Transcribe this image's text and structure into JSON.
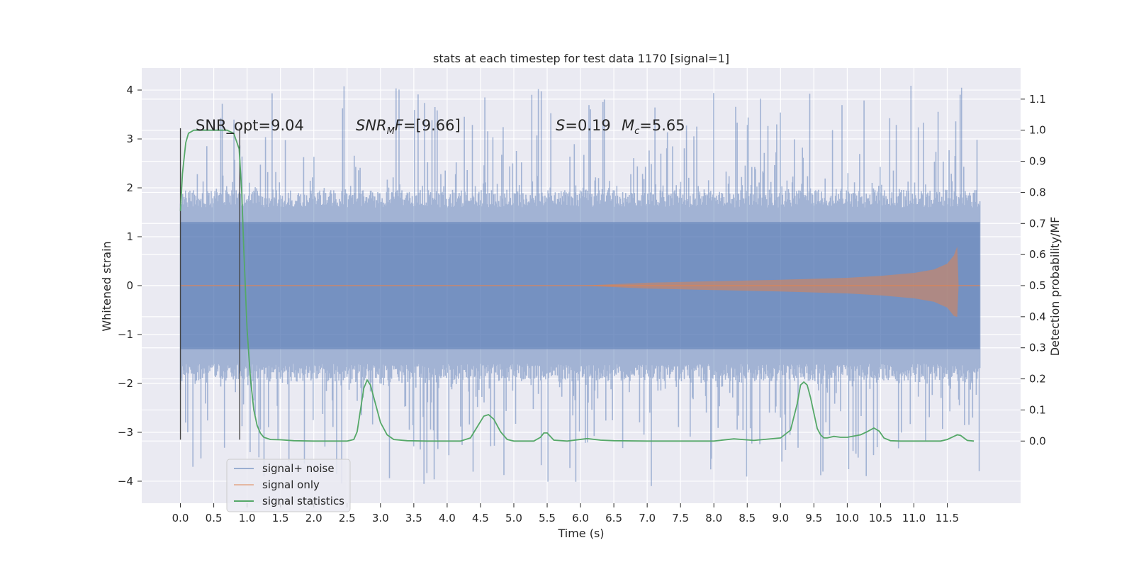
{
  "chart_data": {
    "type": "line",
    "title": "stats at each timestep for test data 1170 [signal=1]",
    "xlabel": "Time (s)",
    "ylabel": "Whitened strain",
    "y2label": "Detection probability/MF",
    "xlim": [
      -0.58,
      12.6
    ],
    "ylim": [
      -4.45,
      4.45
    ],
    "y2lim": [
      -0.2,
      1.2
    ],
    "xticks": [
      0.0,
      0.5,
      1.0,
      1.5,
      2.0,
      2.5,
      3.0,
      3.5,
      4.0,
      4.5,
      5.0,
      5.5,
      6.0,
      6.5,
      7.0,
      7.5,
      8.0,
      8.5,
      9.0,
      9.5,
      10.0,
      10.5,
      11.0,
      11.5
    ],
    "xtick_labels": [
      "0.0",
      "0.5",
      "1.0",
      "1.5",
      "2.0",
      "2.5",
      "3.0",
      "3.5",
      "4.0",
      "4.5",
      "5.0",
      "5.5",
      "6.0",
      "6.5",
      "7.0",
      "7.5",
      "8.0",
      "8.5",
      "9.0",
      "9.5",
      "10.0",
      "10.5",
      "11.0",
      "11.5"
    ],
    "yticks": [
      -4,
      -3,
      -2,
      -1,
      0,
      1,
      2,
      3,
      4
    ],
    "ytick_labels": [
      "−4",
      "−3",
      "−2",
      "−1",
      "0",
      "1",
      "2",
      "3",
      "4"
    ],
    "y2ticks": [
      0.0,
      0.1,
      0.2,
      0.3,
      0.4,
      0.5,
      0.6,
      0.7,
      0.8,
      0.9,
      1.0,
      1.1
    ],
    "y2tick_labels": [
      "0.0",
      "0.1",
      "0.2",
      "0.3",
      "0.4",
      "0.5",
      "0.6",
      "0.7",
      "0.8",
      "0.9",
      "1.0",
      "1.1"
    ],
    "grid": true,
    "legend_position": "lower-left",
    "annotations": {
      "snr_opt": "SNR_opt=9.04",
      "snr_mf_main": "SNR",
      "snr_mf_sub": "M",
      "snr_mf_rest": "F=[9.66]",
      "s_var": "S",
      "s_val": "=0.19",
      "mc_var": "M",
      "mc_sub": "c",
      "mc_val": "=5.65"
    },
    "vlines": [
      0.0,
      0.89
    ],
    "series": [
      {
        "name": "signal+ noise",
        "color": "#4c72b0",
        "kind": "noise",
        "x_range": [
          0.0,
          11.99
        ],
        "core_amplitude": 1.95,
        "spike_max": 4.1
      },
      {
        "name": "signal only",
        "color": "#dd8452",
        "kind": "chirp",
        "envelope": {
          "x": [
            6.0,
            7.0,
            8.0,
            9.0,
            10.0,
            10.5,
            11.0,
            11.3,
            11.5,
            11.6,
            11.65,
            11.67,
            11.72,
            11.99
          ],
          "y": [
            0.0,
            0.06,
            0.09,
            0.12,
            0.16,
            0.2,
            0.26,
            0.33,
            0.45,
            0.62,
            0.8,
            0.0,
            0.0,
            0.0
          ]
        }
      },
      {
        "name": "signal statistics",
        "color": "#55a868",
        "kind": "line",
        "axis": "right",
        "x": [
          0.0,
          0.03,
          0.08,
          0.12,
          0.2,
          0.3,
          0.5,
          0.7,
          0.8,
          0.88,
          0.92,
          0.95,
          1.0,
          1.05,
          1.1,
          1.15,
          1.2,
          1.25,
          1.35,
          1.5,
          1.7,
          2.0,
          2.3,
          2.5,
          2.6,
          2.65,
          2.7,
          2.75,
          2.8,
          2.85,
          2.9,
          2.95,
          3.0,
          3.1,
          3.2,
          3.4,
          3.7,
          4.0,
          4.2,
          4.35,
          4.45,
          4.55,
          4.62,
          4.7,
          4.8,
          4.9,
          5.0,
          5.1,
          5.3,
          5.4,
          5.45,
          5.5,
          5.6,
          5.8,
          6.1,
          6.3,
          6.5,
          7.0,
          7.5,
          8.0,
          8.3,
          8.6,
          9.0,
          9.15,
          9.25,
          9.3,
          9.35,
          9.4,
          9.45,
          9.5,
          9.55,
          9.6,
          9.65,
          9.7,
          9.8,
          9.9,
          10.0,
          10.2,
          10.3,
          10.4,
          10.48,
          10.55,
          10.65,
          10.8,
          11.0,
          11.4,
          11.5,
          11.6,
          11.65,
          11.7,
          11.8,
          11.9
        ],
        "y": [
          0.74,
          0.86,
          0.96,
          0.99,
          1.0,
          1.0,
          1.0,
          1.0,
          0.99,
          0.94,
          0.8,
          0.62,
          0.36,
          0.2,
          0.1,
          0.05,
          0.025,
          0.012,
          0.005,
          0.004,
          0.001,
          0.0,
          0.0,
          0.0,
          0.005,
          0.03,
          0.1,
          0.17,
          0.196,
          0.18,
          0.14,
          0.1,
          0.06,
          0.02,
          0.005,
          0.001,
          0.0,
          0.0,
          0.0,
          0.01,
          0.045,
          0.08,
          0.085,
          0.07,
          0.03,
          0.005,
          0.0,
          0.0,
          0.0,
          0.012,
          0.026,
          0.026,
          0.003,
          0.0,
          0.008,
          0.003,
          0.001,
          0.0,
          0.0,
          0.0,
          0.007,
          0.002,
          0.01,
          0.035,
          0.12,
          0.18,
          0.19,
          0.18,
          0.14,
          0.09,
          0.04,
          0.02,
          0.01,
          0.01,
          0.015,
          0.012,
          0.012,
          0.02,
          0.03,
          0.042,
          0.032,
          0.01,
          0.001,
          0.0,
          0.0,
          0.0,
          0.005,
          0.015,
          0.02,
          0.018,
          0.002,
          0.0
        ]
      }
    ]
  }
}
